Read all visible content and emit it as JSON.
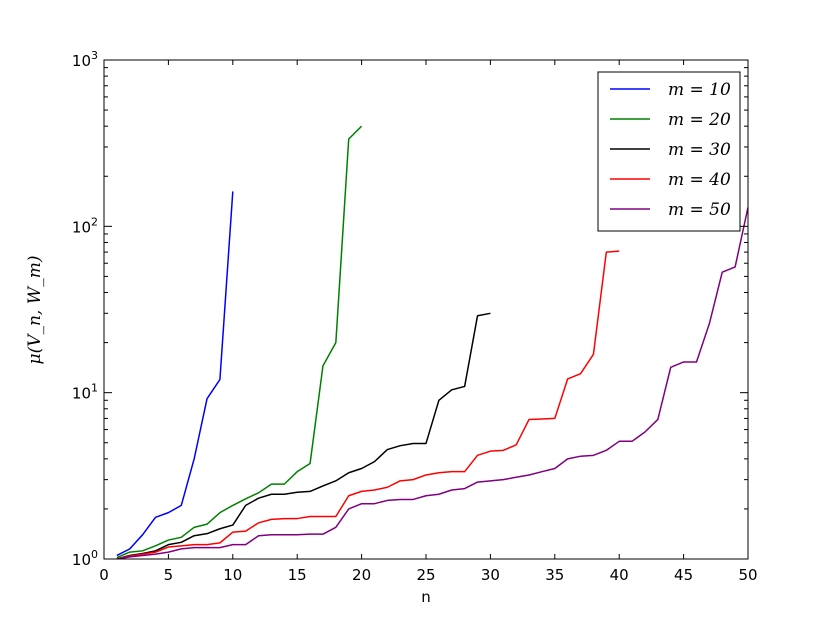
{
  "chart_data": {
    "type": "line",
    "title": "",
    "xlabel": "n",
    "ylabel": "μ(V_n, W_m)",
    "xlim": [
      0,
      50
    ],
    "ylim": [
      1,
      1000
    ],
    "yscale": "log",
    "x_ticks": [
      "0",
      "5",
      "10",
      "15",
      "20",
      "25",
      "30",
      "35",
      "40",
      "45",
      "50"
    ],
    "y_ticks": [
      {
        "base": "10",
        "exp": "0"
      },
      {
        "base": "10",
        "exp": "1"
      },
      {
        "base": "10",
        "exp": "2"
      },
      {
        "base": "10",
        "exp": "3"
      }
    ],
    "grid": false,
    "legend_position": "top-right",
    "series": [
      {
        "name": "m = 10",
        "color": "#0000ff",
        "x": [
          1,
          2,
          3,
          4,
          5,
          6,
          7,
          8,
          9,
          10
        ],
        "y": [
          1.05,
          1.15,
          1.4,
          1.78,
          1.9,
          2.1,
          4.0,
          9.2,
          12.0,
          162
        ]
      },
      {
        "name": "m = 20",
        "color": "#008000",
        "x": [
          1,
          2,
          3,
          4,
          5,
          6,
          7,
          8,
          9,
          10,
          11,
          12,
          13,
          14,
          15,
          16,
          17,
          18,
          19,
          20
        ],
        "y": [
          1.02,
          1.1,
          1.12,
          1.2,
          1.3,
          1.35,
          1.55,
          1.62,
          1.9,
          2.1,
          2.3,
          2.5,
          2.82,
          2.82,
          3.35,
          3.75,
          14.5,
          20,
          335,
          400
        ]
      },
      {
        "name": "m = 30",
        "color": "#000000",
        "x": [
          1,
          2,
          3,
          4,
          5,
          6,
          7,
          8,
          9,
          10,
          11,
          12,
          13,
          14,
          15,
          16,
          17,
          18,
          19,
          20,
          21,
          22,
          23,
          24,
          25,
          26,
          27,
          28,
          29,
          30
        ],
        "y": [
          1.0,
          1.05,
          1.08,
          1.12,
          1.22,
          1.26,
          1.38,
          1.42,
          1.52,
          1.6,
          2.1,
          2.32,
          2.45,
          2.45,
          2.52,
          2.55,
          2.75,
          2.95,
          3.3,
          3.5,
          3.85,
          4.55,
          4.8,
          4.95,
          4.95,
          9.0,
          10.4,
          10.9,
          29.0,
          30.0
        ]
      },
      {
        "name": "m = 40",
        "color": "#ff0000",
        "x": [
          1,
          2,
          3,
          4,
          5,
          6,
          7,
          8,
          9,
          10,
          11,
          12,
          13,
          14,
          15,
          16,
          17,
          18,
          19,
          20,
          21,
          22,
          23,
          24,
          25,
          26,
          27,
          28,
          29,
          30,
          31,
          32,
          33,
          34,
          35,
          36,
          37,
          38,
          39,
          40
        ],
        "y": [
          1.0,
          1.04,
          1.07,
          1.1,
          1.18,
          1.2,
          1.22,
          1.22,
          1.25,
          1.45,
          1.47,
          1.65,
          1.73,
          1.75,
          1.75,
          1.8,
          1.8,
          1.8,
          2.4,
          2.55,
          2.6,
          2.7,
          2.95,
          3.0,
          3.2,
          3.3,
          3.35,
          3.35,
          4.2,
          4.45,
          4.5,
          4.85,
          6.9,
          6.95,
          7.0,
          12.1,
          13.0,
          17.0,
          70.0,
          71.0
        ]
      },
      {
        "name": "m = 50",
        "color": "#800080",
        "x": [
          1,
          2,
          3,
          4,
          5,
          6,
          7,
          8,
          9,
          10,
          11,
          12,
          13,
          14,
          15,
          16,
          17,
          18,
          19,
          20,
          21,
          22,
          23,
          24,
          25,
          26,
          27,
          28,
          29,
          30,
          31,
          32,
          33,
          34,
          35,
          36,
          37,
          38,
          39,
          40,
          41,
          42,
          43,
          44,
          45,
          46,
          47,
          48,
          49,
          50
        ],
        "y": [
          1.0,
          1.03,
          1.05,
          1.07,
          1.1,
          1.15,
          1.17,
          1.17,
          1.17,
          1.22,
          1.22,
          1.38,
          1.4,
          1.4,
          1.4,
          1.41,
          1.41,
          1.55,
          2.0,
          2.15,
          2.15,
          2.25,
          2.28,
          2.28,
          2.4,
          2.45,
          2.6,
          2.65,
          2.9,
          2.95,
          3.0,
          3.1,
          3.2,
          3.35,
          3.5,
          4.0,
          4.15,
          4.2,
          4.5,
          5.1,
          5.1,
          5.8,
          6.9,
          14.2,
          15.3,
          15.3,
          26.0,
          53.0,
          57.0,
          130.0
        ]
      }
    ]
  }
}
